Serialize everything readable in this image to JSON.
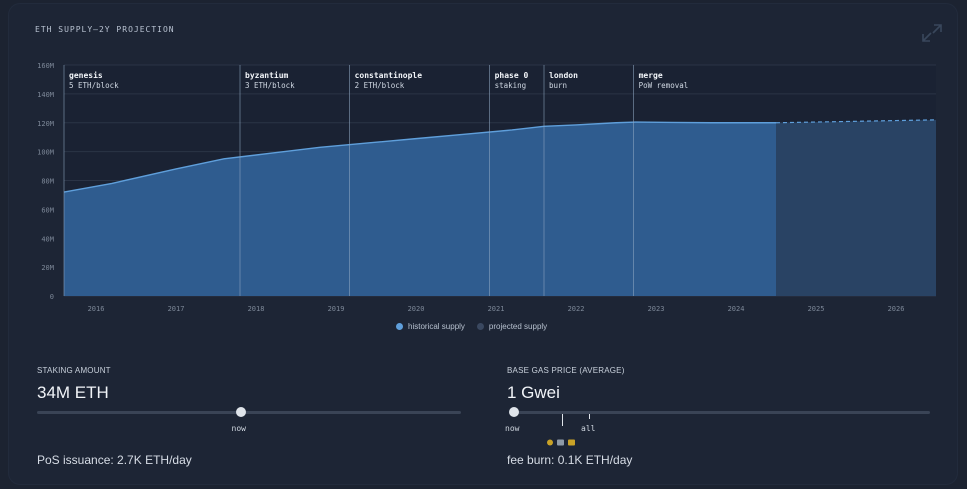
{
  "title": "ETH SUPPLY—2Y PROJECTION",
  "chart_data": {
    "type": "area",
    "title": "ETH SUPPLY—2Y PROJECTION",
    "ylim": [
      0,
      160
    ],
    "yticks": [
      "0",
      "20M",
      "40M",
      "60M",
      "80M",
      "100M",
      "120M",
      "140M",
      "160M"
    ],
    "yvals": [
      0,
      20,
      40,
      60,
      80,
      100,
      120,
      140,
      160
    ],
    "xlim": [
      2015.6,
      2026.5
    ],
    "xticks": [
      "2016",
      "2017",
      "2018",
      "2019",
      "2020",
      "2021",
      "2022",
      "2023",
      "2024",
      "2025",
      "2026"
    ],
    "series": [
      {
        "name": "historical supply",
        "x": [
          2015.6,
          2016.2,
          2017.0,
          2017.6,
          2018.2,
          2018.8,
          2019.4,
          2020.0,
          2020.6,
          2021.2,
          2021.6,
          2022.0,
          2022.5,
          2022.75,
          2023.2,
          2023.7,
          2024.2,
          2024.5
        ],
        "values": [
          72,
          78,
          88,
          95,
          99,
          103,
          106,
          109,
          112,
          115,
          117.5,
          118.5,
          120,
          120.5,
          120.2,
          120,
          120,
          120
        ]
      },
      {
        "name": "projected supply",
        "x": [
          2024.5,
          2025.0,
          2025.5,
          2026.0,
          2026.5
        ],
        "values": [
          120,
          120.5,
          121,
          121.5,
          122
        ]
      }
    ],
    "events": [
      {
        "x": 2015.6,
        "name": "genesis",
        "desc": "5 ETH/block"
      },
      {
        "x": 2017.8,
        "name": "byzantium",
        "desc": "3 ETH/block"
      },
      {
        "x": 2019.17,
        "name": "constantinople",
        "desc": "2 ETH/block"
      },
      {
        "x": 2020.92,
        "name": "phase 0",
        "desc": "staking"
      },
      {
        "x": 2021.6,
        "name": "london",
        "desc": "burn"
      },
      {
        "x": 2022.72,
        "name": "merge",
        "desc": "PoW removal"
      }
    ],
    "legend": [
      "historical supply",
      "projected supply"
    ],
    "colors": {
      "historical": "#2f5c8f",
      "historical_line": "#5f9fdb",
      "projected": "#294364",
      "grid": "#2b3446"
    }
  },
  "staking": {
    "label": "STAKING AMOUNT",
    "value": "34M ETH",
    "slider_label": "now",
    "slider_fraction": 0.48,
    "foot": "PoS issuance: 2.7K ETH/day"
  },
  "gas": {
    "label": "BASE GAS PRICE (AVERAGE)",
    "value": "1 Gwei",
    "slider_label_left": "now",
    "slider_label_right": "all",
    "slider_fraction": 0.0,
    "foot": "fee burn: 0.1K ETH/day"
  },
  "icons": {
    "expand": "expand-icon"
  }
}
